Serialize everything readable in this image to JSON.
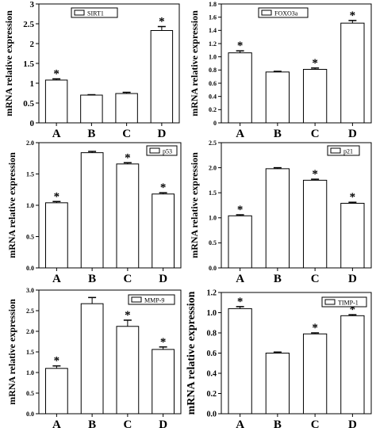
{
  "chart_data": [
    {
      "type": "bar",
      "legend": "SIRT1",
      "ylabel": "mRNA relative expression",
      "categories": [
        "A",
        "B",
        "C",
        "D"
      ],
      "values": [
        1.08,
        0.7,
        0.74,
        2.33
      ],
      "errors": [
        0.03,
        0.01,
        0.03,
        0.1
      ],
      "significant": [
        true,
        false,
        false,
        true
      ],
      "ylim": [
        0,
        3
      ],
      "yticks": [
        "0",
        "0.5",
        "1",
        "1.5",
        "2",
        "2.5",
        "3"
      ],
      "ytick_values": [
        0,
        0.5,
        1,
        1.5,
        2,
        2.5,
        3
      ]
    },
    {
      "type": "bar",
      "legend": "FOXO3a",
      "ylabel": "mRNA relative expression",
      "categories": [
        "A",
        "B",
        "C",
        "D"
      ],
      "values": [
        1.06,
        0.77,
        0.81,
        1.51
      ],
      "errors": [
        0.03,
        0.01,
        0.02,
        0.04
      ],
      "significant": [
        true,
        false,
        true,
        true
      ],
      "ylim": [
        0,
        1.8
      ],
      "yticks": [
        "0",
        "0.2",
        "0.4",
        "0.6",
        "0.8",
        "1.0",
        "1.2",
        "1.4",
        "1.6",
        "1.8"
      ],
      "ytick_values": [
        0,
        0.2,
        0.4,
        0.6,
        0.8,
        1.0,
        1.2,
        1.4,
        1.6,
        1.8
      ]
    },
    {
      "type": "bar",
      "legend": "p53",
      "ylabel": "mRNA relative expression",
      "categories": [
        "A",
        "B",
        "C",
        "D"
      ],
      "values": [
        1.04,
        1.84,
        1.66,
        1.18
      ],
      "errors": [
        0.02,
        0.02,
        0.02,
        0.02
      ],
      "significant": [
        true,
        false,
        true,
        true
      ],
      "ylim": [
        0,
        2.0
      ],
      "yticks": [
        "0.0",
        "0.5",
        "1.0",
        "1.5",
        "2.0"
      ],
      "ytick_values": [
        0,
        0.5,
        1.0,
        1.5,
        2.0
      ]
    },
    {
      "type": "bar",
      "legend": "p21",
      "ylabel": "mRNA relative expression",
      "categories": [
        "A",
        "B",
        "C",
        "D"
      ],
      "values": [
        1.04,
        1.98,
        1.75,
        1.29
      ],
      "errors": [
        0.02,
        0.02,
        0.02,
        0.02
      ],
      "significant": [
        true,
        false,
        true,
        true
      ],
      "ylim": [
        0,
        2.5
      ],
      "yticks": [
        "0.0",
        "0.5",
        "1.0",
        "1.5",
        "2.0",
        "2.5"
      ],
      "ytick_values": [
        0,
        0.5,
        1.0,
        1.5,
        2.0,
        2.5
      ]
    },
    {
      "type": "bar",
      "legend": "MMP-9",
      "ylabel": "mRNA relative expression",
      "categories": [
        "A",
        "B",
        "C",
        "D"
      ],
      "values": [
        1.1,
        2.67,
        2.12,
        1.56
      ],
      "errors": [
        0.06,
        0.15,
        0.15,
        0.06
      ],
      "significant": [
        true,
        false,
        true,
        true
      ],
      "ylim": [
        0,
        3.0
      ],
      "yticks": [
        "0.0",
        "0.5",
        "1.0",
        "1.5",
        "2.0",
        "2.5",
        "3.0"
      ],
      "ytick_values": [
        0,
        0.5,
        1.0,
        1.5,
        2.0,
        2.5,
        3.0
      ]
    },
    {
      "type": "bar",
      "legend": "TIMP-1",
      "ylabel": "mRNA relative expression",
      "categories": [
        "A",
        "B",
        "C",
        "D"
      ],
      "values": [
        1.04,
        0.6,
        0.79,
        0.97
      ],
      "errors": [
        0.02,
        0.01,
        0.01,
        0.01
      ],
      "significant": [
        true,
        false,
        true,
        true
      ],
      "ylim": [
        0,
        1.2
      ],
      "yticks": [
        "0.0",
        "0.2",
        "0.4",
        "0.6",
        "0.8",
        "1.0",
        "1.2"
      ],
      "ytick_values": [
        0,
        0.2,
        0.4,
        0.6,
        0.8,
        1.0,
        1.2
      ]
    }
  ],
  "significance_marker": "*"
}
